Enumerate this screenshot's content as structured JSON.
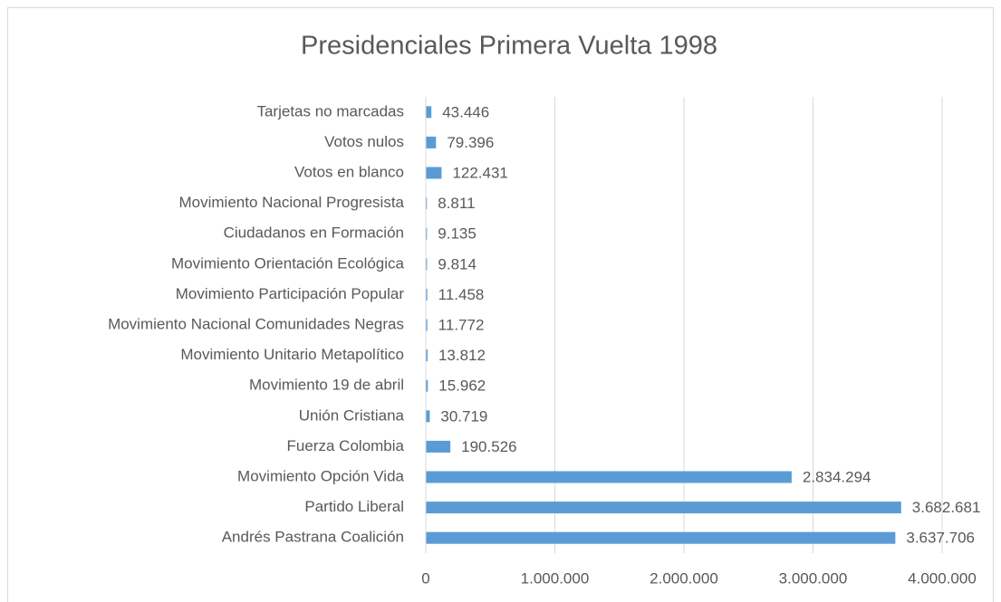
{
  "chart_data": {
    "type": "bar",
    "orientation": "horizontal",
    "title": "Presidenciales Primera Vuelta 1998",
    "categories": [
      "Tarjetas no marcadas",
      "Votos nulos",
      "Votos en blanco",
      "Movimiento Nacional Progresista",
      "Ciudadanos en Formación",
      "Movimiento Orientación Ecológica",
      "Movimiento Participación Popular",
      "Movimiento Nacional Comunidades Negras",
      "Movimiento Unitario Metapolítico",
      "Movimiento 19 de abril",
      "Unión Cristiana",
      "Fuerza Colombia",
      "Movimiento Opción Vida",
      "Partido Liberal",
      "Andrés Pastrana Coalición"
    ],
    "values": [
      43446,
      79396,
      122431,
      8811,
      9135,
      9814,
      11458,
      11772,
      13812,
      15962,
      30719,
      190526,
      2834294,
      3682681,
      3637706
    ],
    "value_labels": [
      "43.446",
      "79.396",
      "122.431",
      "8.811",
      "9.135",
      "9.814",
      "11.458",
      "11.772",
      "13.812",
      "15.962",
      "30.719",
      "190.526",
      "2.834.294",
      "3.682.681",
      "3.637.706"
    ],
    "color": "#5b9bd5",
    "xlim": [
      0,
      4000000
    ],
    "xticks": [
      0,
      {
        "value": 1000000,
        "label": "1.000.000"
      },
      {
        "value": 2000000,
        "label": "2.000.000"
      },
      {
        "value": 3000000,
        "label": "3.000.000"
      },
      {
        "value": 4000000,
        "label": "4.000.000"
      }
    ],
    "grid": true
  }
}
